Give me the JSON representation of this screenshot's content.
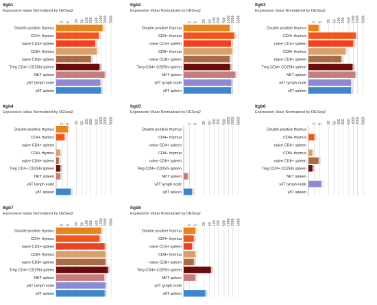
{
  "colors": {
    "Double positive thymus": "#e8841c",
    "CD4+ thymus": "#f2561d",
    "naive CD4+ spleen": "#f0411e",
    "CD8+ thymus": "#d9a06b",
    "naive CD8+ spleen": "#a86b44",
    "Treg CD4+ CD25hi spleen": "#6b0c0c",
    "NKT spleen": "#c97a7a",
    "γδT lymph node": "#8c8ad6",
    "γδT spleen": "#3c86c9"
  },
  "chart_data": [
    {
      "type": "bar",
      "title": "Itgb1",
      "subtitle": "Expression Value Normalized by DESeq2",
      "categories": [
        "Double positive thymus",
        "CD4+ thymus",
        "naive CD4+ spleen",
        "CD8+ thymus",
        "naive CD8+ spleen",
        "Treg CD4+ CD25hi spleen",
        "NKT spleen",
        "γδT lymph node",
        "γδT spleen"
      ],
      "values": [
        1300,
        700,
        400,
        500,
        200,
        800,
        1800,
        900,
        1000
      ],
      "scale": "log",
      "ticks": [
        "2",
        "5",
        "20",
        "50",
        "100",
        "200",
        "500",
        "1000",
        "2000",
        "5000"
      ]
    },
    {
      "type": "bar",
      "title": "Itgb2",
      "subtitle": "Expression Value Normalized by DESeq2",
      "categories": [
        "Double positive thymus",
        "CD4+ thymus",
        "naive CD4+ spleen",
        "CD8+ thymus",
        "naive CD8+ spleen",
        "Treg CD4+ CD25hi spleen",
        "NKT spleen",
        "γδT lymph node",
        "γδT spleen"
      ],
      "values": [
        1200,
        2500,
        1500,
        1700,
        1200,
        1300,
        3000,
        1600,
        1500
      ],
      "scale": "log",
      "ticks": [
        "2",
        "5",
        "20",
        "50",
        "100",
        "200",
        "500",
        "1000",
        "2000",
        "5000"
      ]
    },
    {
      "type": "bar",
      "title": "Itgb3",
      "subtitle": "Expression Value Normalized by DESeq2",
      "categories": [
        "Double positive thymus",
        "CD4+ thymus",
        "naive CD4+ spleen",
        "CD8+ thymus",
        "naive CD8+ spleen",
        "Treg CD4+ CD25hi spleen",
        "NKT spleen",
        "γδT lymph node",
        "γδT spleen"
      ],
      "values": [
        4,
        1500,
        1000,
        300,
        150,
        900,
        1400,
        700,
        700
      ],
      "scale": "log",
      "ticks": [
        "2",
        "5",
        "20",
        "50",
        "100",
        "200",
        "500",
        "1000",
        "2000",
        "5000"
      ]
    },
    {
      "type": "bar",
      "title": "Itgb4",
      "subtitle": "Expression Value Normalized by DESeq2",
      "categories": [
        "Double positive thymus",
        "CD4+ thymus",
        "naive CD4+ spleen",
        "CD8+ thymus",
        "naive CD8+ spleen",
        "Treg CD4+ CD25hi spleen",
        "NKT spleen",
        "γδT lymph node",
        "γδT spleen"
      ],
      "values": [
        5,
        3,
        0,
        1.5,
        1.2,
        1.5,
        1.5,
        0,
        8
      ],
      "scale": "log",
      "ticks": [
        "2",
        "5",
        "20",
        "50",
        "100",
        "200",
        "500",
        "1000",
        "2000",
        "5000"
      ]
    },
    {
      "type": "bar",
      "title": "Itgb5",
      "subtitle": "Expression Value Normalized by DESeq2",
      "categories": [
        "Double positive thymus",
        "CD4+ thymus",
        "naive CD4+ spleen",
        "CD8+ thymus",
        "naive CD8+ spleen",
        "Treg CD4+ CD25hi spleen",
        "NKT spleen",
        "γδT lymph node",
        "γδT spleen"
      ],
      "values": [
        0,
        0,
        0,
        0,
        0,
        0,
        1.5,
        0,
        3
      ],
      "scale": "log",
      "ticks": [
        "2",
        "5",
        "20",
        "50",
        "100",
        "200",
        "500",
        "1000",
        "2000",
        "5000"
      ]
    },
    {
      "type": "bar",
      "title": "Itgb6",
      "subtitle": "Expression Value Normalized by DESeq2",
      "categories": [
        "Double positive thymus",
        "CD4+ thymus",
        "naive CD4+ spleen",
        "CD8+ thymus",
        "naive CD8+ spleen",
        "Treg CD4+ CD25hi spleen",
        "NKT spleen",
        "γδT lymph node",
        "γδT spleen"
      ],
      "values": [
        0,
        2,
        0,
        1.5,
        4,
        1.5,
        0,
        6,
        0
      ],
      "scale": "log",
      "ticks": [
        "2",
        "5",
        "20",
        "50",
        "100",
        "200",
        "500",
        "1000",
        "2000",
        "5000"
      ]
    },
    {
      "type": "bar",
      "title": "Itgb7",
      "subtitle": "Expression Value Normalized by DESeq2",
      "categories": [
        "Double positive thymus",
        "CD4+ thymus",
        "naive CD4+ spleen",
        "CD8+ thymus",
        "naive CD8+ spleen",
        "Treg CD4+ CD25hi spleen",
        "NKT spleen",
        "γδT lymph node",
        "γδT spleen"
      ],
      "values": [
        1000,
        800,
        1800,
        2000,
        2000,
        3000,
        1700,
        2000,
        1800
      ],
      "scale": "log",
      "ticks": [
        "2",
        "5",
        "20",
        "50",
        "100",
        "200",
        "500",
        "1000",
        "2000",
        "5000"
      ]
    },
    {
      "type": "bar",
      "title": "Itgb8",
      "subtitle": "Expression Value Normalized by DESeq2",
      "categories": [
        "Double positive thymus",
        "CD4+ thymus",
        "naive CD4+ spleen",
        "CD8+ thymus",
        "naive CD8+ spleen",
        "Treg CD4+ CD25hi spleen",
        "NKT spleen",
        "γδT lymph node",
        "γδT spleen"
      ],
      "values": [
        5,
        4,
        3,
        5,
        4,
        60,
        5,
        0,
        25
      ],
      "scale": "log",
      "ticks": [
        "2",
        "5",
        "20",
        "50",
        "100",
        "200",
        "500",
        "1000",
        "2000",
        "5000"
      ]
    }
  ]
}
